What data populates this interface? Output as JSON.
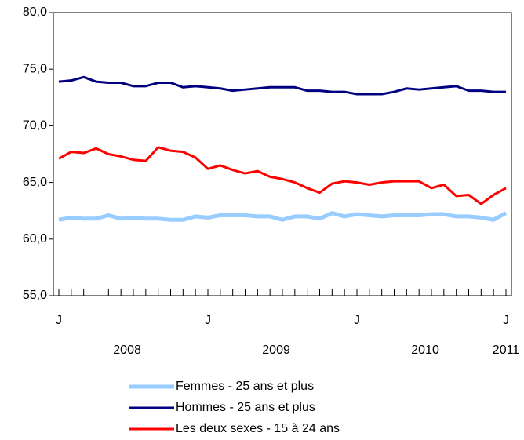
{
  "chart_data": {
    "type": "line",
    "categories": [
      "J",
      null,
      null,
      null,
      null,
      null,
      null,
      null,
      null,
      null,
      null,
      null,
      "J",
      null,
      null,
      null,
      null,
      null,
      null,
      null,
      null,
      null,
      null,
      null,
      "J",
      null,
      null,
      null,
      null,
      null,
      null,
      null,
      null,
      null,
      null,
      null,
      "J"
    ],
    "years": [
      "2008",
      "2009",
      "2010",
      "2011"
    ],
    "ylim": [
      55,
      80
    ],
    "yticks": [
      {
        "value": 55,
        "label": "55,0"
      },
      {
        "value": 60,
        "label": "60,0"
      },
      {
        "value": 65,
        "label": "65,0"
      },
      {
        "value": 70,
        "label": "70,0"
      },
      {
        "value": 75,
        "label": "75,0"
      },
      {
        "value": 80,
        "label": "80,0"
      }
    ],
    "series": [
      {
        "name": "Femmes - 25 ans et plus",
        "color": "#99ccff",
        "values": [
          61.7,
          61.9,
          61.8,
          61.8,
          62.1,
          61.8,
          61.9,
          61.8,
          61.8,
          61.7,
          61.7,
          62.0,
          61.9,
          62.1,
          62.1,
          62.1,
          62.0,
          62.0,
          61.7,
          62.0,
          62.0,
          61.8,
          62.3,
          62.0,
          62.2,
          62.1,
          62.0,
          62.1,
          62.1,
          62.1,
          62.2,
          62.2,
          62.0,
          62.0,
          61.9,
          61.7,
          62.3
        ]
      },
      {
        "name": "Hommes - 25 ans et plus",
        "color": "#000080",
        "values": [
          73.9,
          74.0,
          74.3,
          73.9,
          73.8,
          73.8,
          73.5,
          73.5,
          73.8,
          73.8,
          73.4,
          73.5,
          73.4,
          73.3,
          73.1,
          73.2,
          73.3,
          73.4,
          73.4,
          73.4,
          73.1,
          73.1,
          73.0,
          73.0,
          72.8,
          72.8,
          72.8,
          73.0,
          73.3,
          73.2,
          73.3,
          73.4,
          73.5,
          73.1,
          73.1,
          73.0,
          73.0
        ]
      },
      {
        "name": "Les deux sexes - 15 à 24 ans",
        "color": "#ff0000",
        "values": [
          67.1,
          67.7,
          67.6,
          68.0,
          67.5,
          67.3,
          67.0,
          66.9,
          68.1,
          67.8,
          67.7,
          67.2,
          66.2,
          66.5,
          66.1,
          65.8,
          66.0,
          65.5,
          65.3,
          65.0,
          64.5,
          64.1,
          64.9,
          65.1,
          65.0,
          64.8,
          65.0,
          65.1,
          65.1,
          65.1,
          64.5,
          64.8,
          63.8,
          63.9,
          63.1,
          63.9,
          64.5
        ]
      }
    ]
  }
}
